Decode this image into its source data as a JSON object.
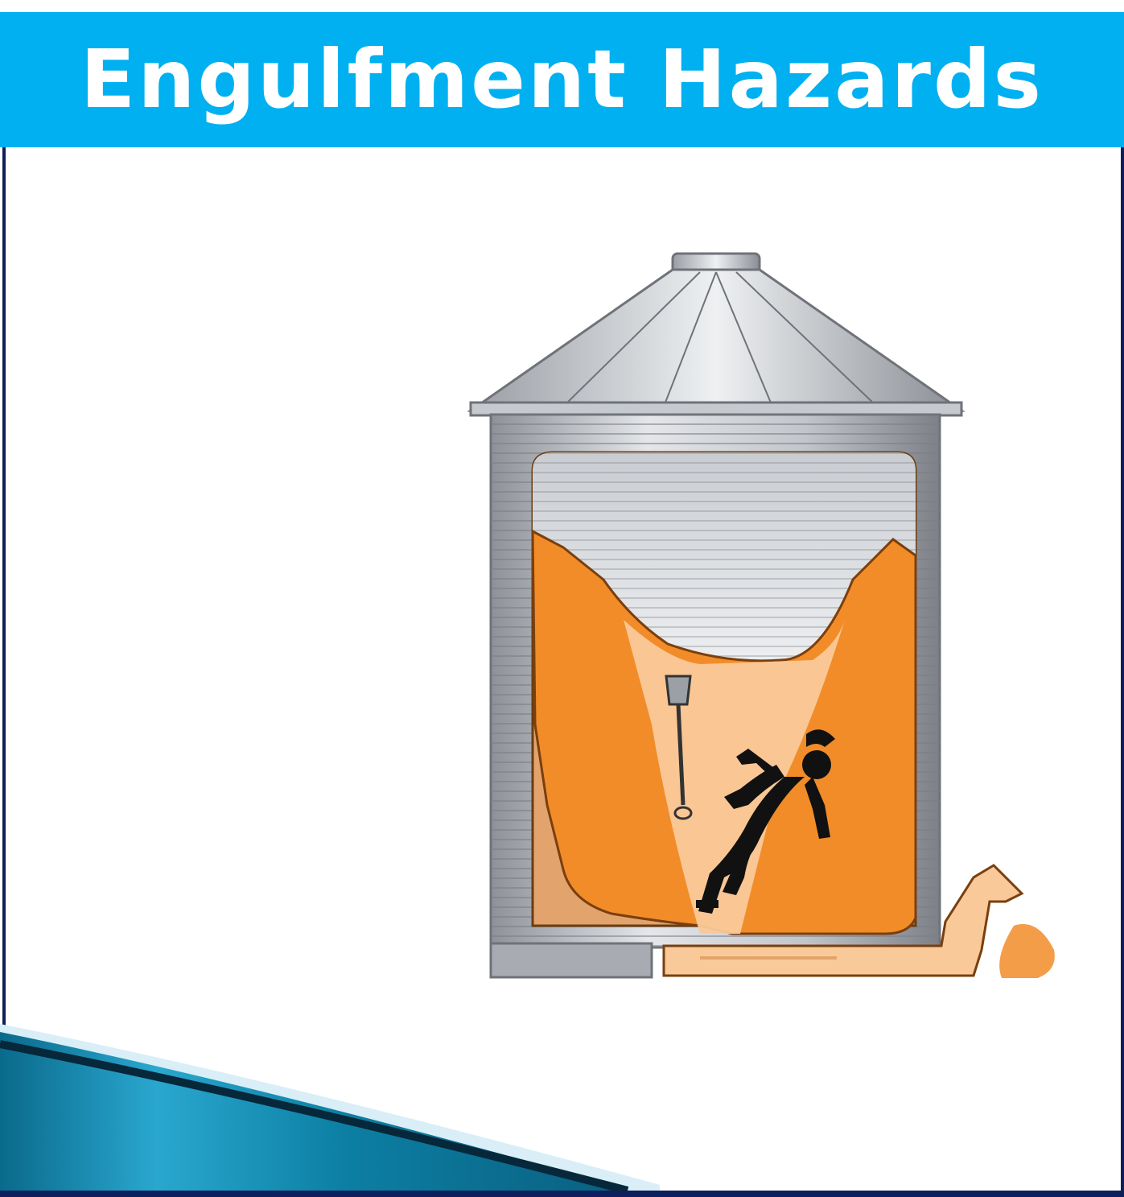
{
  "slide": {
    "title": "Engulfment Hazards"
  },
  "illustration": {
    "subject": "grain-silo-engulfment",
    "colors": {
      "title_bar": "#00b0f0",
      "frame_border": "#0d1f5c",
      "grain": "#f28c28",
      "grain_light": "#f9c99a",
      "silo_metal": "#b8bcc2",
      "victim": "#111111"
    }
  }
}
